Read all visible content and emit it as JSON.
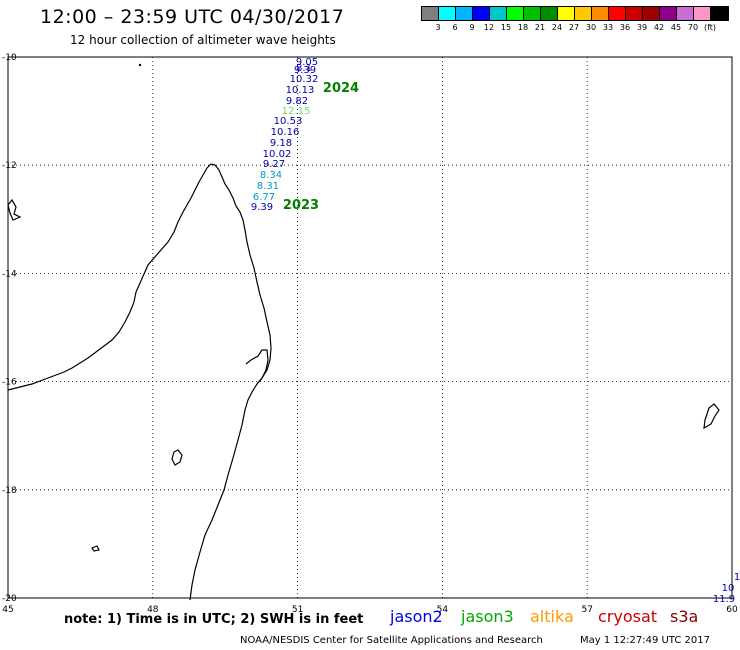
{
  "header": {
    "title": "12:00 – 23:59 UTC 04/30/2017",
    "subtitle": "12 hour collection of altimeter wave heights"
  },
  "legend": {
    "unit": "(ft)",
    "colors": [
      "#7f7f7f",
      "#00ffff",
      "#00b4ff",
      "#0000ff",
      "#00c8c8",
      "#00ff00",
      "#00c000",
      "#008c00",
      "#ffff00",
      "#ffc800",
      "#ff8c00",
      "#ff0000",
      "#c80000",
      "#a00000",
      "#8c008c",
      "#c86ed2",
      "#ff96c8",
      "#000000"
    ],
    "ticks": [
      "3",
      "6",
      "9",
      "12",
      "15",
      "18",
      "21",
      "24",
      "27",
      "30",
      "33",
      "36",
      "39",
      "42",
      "45",
      "70"
    ]
  },
  "axes": {
    "lat_labels": [
      "-10",
      "-12",
      "-14",
      "-16",
      "-18",
      "-20"
    ],
    "lon_labels": [
      "45",
      "48",
      "51",
      "54",
      "57",
      "60"
    ]
  },
  "tracks": [
    {
      "year_label": "2024",
      "year_color": "#008000"
    },
    {
      "year_label": "2023",
      "year_color": "#008000"
    }
  ],
  "readings": [
    {
      "value": "9.05",
      "color": "#0000aa"
    },
    {
      "value": "9.39",
      "color": "#0000aa"
    },
    {
      "value": "8.1",
      "color": "#0000aa"
    },
    {
      "value": "10.32",
      "color": "#0000aa"
    },
    {
      "value": "10.13",
      "color": "#0000aa"
    },
    {
      "value": "9.82",
      "color": "#0000aa"
    },
    {
      "value": "12.15",
      "color": "#66dd66"
    },
    {
      "value": "10.53",
      "color": "#0000aa"
    },
    {
      "value": "10.16",
      "color": "#0000aa"
    },
    {
      "value": "9.18",
      "color": "#0000aa"
    },
    {
      "value": "10.02",
      "color": "#0000aa"
    },
    {
      "value": "9.27",
      "color": "#0000aa"
    },
    {
      "value": "8.34",
      "color": "#0099cc"
    },
    {
      "value": "8.31",
      "color": "#0099cc"
    },
    {
      "value": "6.77",
      "color": "#0099cc"
    },
    {
      "value": "9.39",
      "color": "#0000aa"
    },
    {
      "value": "1",
      "color": "#0000aa"
    },
    {
      "value": "10",
      "color": "#0000aa"
    },
    {
      "value": "11.9",
      "color": "#0000aa"
    }
  ],
  "note": "note:  1) Time is in UTC;  2) SWH is in feet",
  "satellites": [
    {
      "name": "jason2",
      "color": "#0000dd"
    },
    {
      "name": "jason3",
      "color": "#00aa00"
    },
    {
      "name": "altika",
      "color": "#ff9900"
    },
    {
      "name": "cryosat",
      "color": "#cc0000"
    },
    {
      "name": "s3a",
      "color": "#880000"
    }
  ],
  "footer": {
    "credit": "NOAA/NESDIS Center for Satellite Applications and Research",
    "timestamp": "May  1 12:27:49 UTC 2017"
  }
}
